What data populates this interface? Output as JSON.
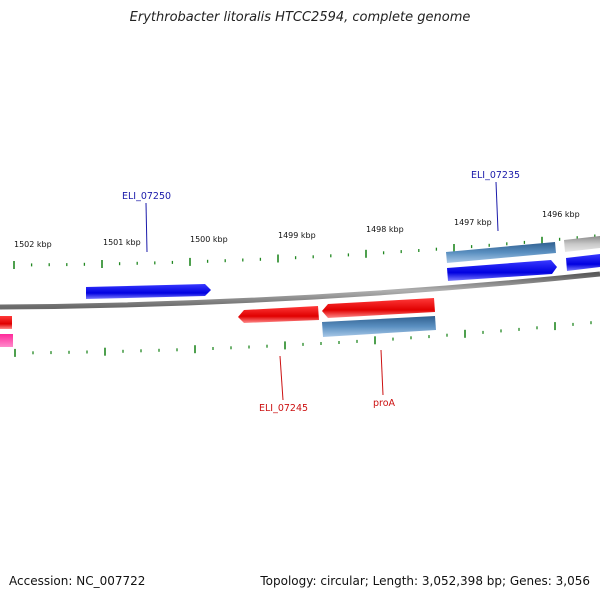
{
  "title": "Erythrobacter litoralis HTCC2594, complete genome",
  "footer": {
    "accession": "Accession: NC_007722",
    "summary": "Topology: circular; Length: 3,052,398 bp; Genes: 3,056"
  },
  "scale_labels": [
    "1502 kbp",
    "1501 kbp",
    "1500 kbp",
    "1499 kbp",
    "1498 kbp",
    "1497 kbp",
    "1496 kbp"
  ],
  "gene_labels": [
    {
      "id": "ELI_07250",
      "color": "#1a1aaa"
    },
    {
      "id": "ELI_07235",
      "color": "#1a1aaa"
    },
    {
      "id": "ELI_07245",
      "color": "#cc1111"
    },
    {
      "id": "proA",
      "color": "#cc1111"
    }
  ],
  "colors": {
    "backbone": "#808080",
    "ticks": "#228822",
    "forward_cds": "#0000ee",
    "forward_gene": "#4a7fb0",
    "reverse_cds": "#ee0000",
    "reverse_gene": "#4a7fb0",
    "rna": "#ff2aa0",
    "other": "#b0b0b0"
  }
}
